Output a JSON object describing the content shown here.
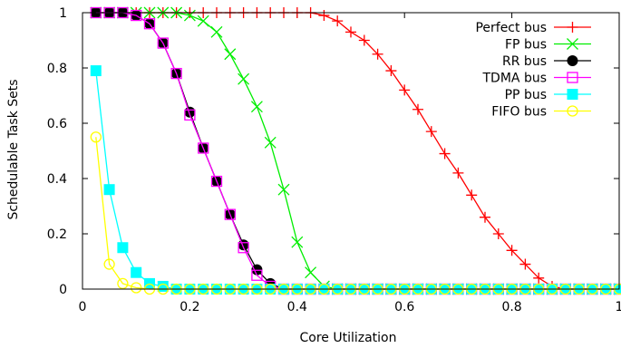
{
  "chart_data": {
    "type": "line",
    "xlabel": "Core Utilization",
    "ylabel": "Schedulable Task Sets",
    "xlim": [
      0,
      1
    ],
    "ylim": [
      0,
      1
    ],
    "xticks": [
      0,
      0.2,
      0.4,
      0.6,
      0.8,
      1
    ],
    "xtick_labels": [
      "0",
      "0.2",
      "0.4",
      "0.6",
      "0.8",
      "1"
    ],
    "yticks": [
      0,
      0.2,
      0.4,
      0.6,
      0.8,
      1
    ],
    "ytick_labels": [
      "0",
      "0.2",
      "0.4",
      "0.6",
      "0.8",
      "1"
    ],
    "grid": false,
    "legend_position": "top-right",
    "series": [
      {
        "name": "Perfect bus",
        "color": "#ff0000",
        "marker": "plus",
        "x": [
          0.025,
          0.05,
          0.075,
          0.1,
          0.125,
          0.15,
          0.175,
          0.2,
          0.225,
          0.25,
          0.275,
          0.3,
          0.325,
          0.35,
          0.375,
          0.4,
          0.425,
          0.45,
          0.475,
          0.5,
          0.525,
          0.55,
          0.575,
          0.6,
          0.625,
          0.65,
          0.675,
          0.7,
          0.725,
          0.75,
          0.775,
          0.8,
          0.825,
          0.85,
          0.875,
          0.9,
          0.925,
          0.95,
          0.975,
          1.0
        ],
        "y": [
          1,
          1,
          1,
          1,
          1,
          1,
          1,
          1,
          1,
          1,
          1,
          1,
          1,
          1,
          1,
          1,
          1,
          0.99,
          0.97,
          0.93,
          0.9,
          0.85,
          0.79,
          0.72,
          0.65,
          0.57,
          0.49,
          0.42,
          0.34,
          0.26,
          0.2,
          0.14,
          0.09,
          0.04,
          0.01,
          0,
          0,
          0,
          0,
          0
        ]
      },
      {
        "name": "FP bus",
        "color": "#00ee00",
        "marker": "x",
        "x": [
          0.025,
          0.05,
          0.075,
          0.1,
          0.125,
          0.15,
          0.175,
          0.2,
          0.225,
          0.25,
          0.275,
          0.3,
          0.325,
          0.35,
          0.375,
          0.4,
          0.425,
          0.45,
          0.475,
          0.5,
          0.525,
          0.55,
          0.575,
          0.6,
          0.625,
          0.65,
          0.675,
          0.7,
          0.725,
          0.75,
          0.775,
          0.8,
          0.825,
          0.85,
          0.875,
          0.9,
          0.925,
          0.95,
          0.975,
          1.0
        ],
        "y": [
          1,
          1,
          1,
          1,
          1,
          1,
          1,
          0.99,
          0.97,
          0.93,
          0.85,
          0.76,
          0.66,
          0.53,
          0.36,
          0.17,
          0.06,
          0.01,
          0,
          0,
          0,
          0,
          0,
          0,
          0,
          0,
          0,
          0,
          0,
          0,
          0,
          0,
          0,
          0,
          0,
          0,
          0,
          0,
          0,
          0
        ]
      },
      {
        "name": "RR bus",
        "color": "#000000",
        "marker": "circle-filled",
        "x": [
          0.025,
          0.05,
          0.075,
          0.1,
          0.125,
          0.15,
          0.175,
          0.2,
          0.225,
          0.25,
          0.275,
          0.3,
          0.325,
          0.35,
          0.375,
          0.4,
          0.425,
          0.45,
          0.475,
          0.5,
          0.525,
          0.55,
          0.575,
          0.6,
          0.625,
          0.65,
          0.675,
          0.7,
          0.725,
          0.75,
          0.775,
          0.8,
          0.825,
          0.85,
          0.875,
          0.9,
          0.925,
          0.95,
          0.975,
          1.0
        ],
        "y": [
          1,
          1,
          1,
          0.99,
          0.96,
          0.89,
          0.78,
          0.64,
          0.51,
          0.39,
          0.27,
          0.16,
          0.07,
          0.02,
          0,
          0,
          0,
          0,
          0,
          0,
          0,
          0,
          0,
          0,
          0,
          0,
          0,
          0,
          0,
          0,
          0,
          0,
          0,
          0,
          0,
          0,
          0,
          0,
          0,
          0
        ]
      },
      {
        "name": "TDMA bus",
        "color": "#ff00ff",
        "marker": "square-open",
        "x": [
          0.025,
          0.05,
          0.075,
          0.1,
          0.125,
          0.15,
          0.175,
          0.2,
          0.225,
          0.25,
          0.275,
          0.3,
          0.325,
          0.35,
          0.375,
          0.4,
          0.425,
          0.45,
          0.475,
          0.5,
          0.525,
          0.55,
          0.575,
          0.6,
          0.625,
          0.65,
          0.675,
          0.7,
          0.725,
          0.75,
          0.775,
          0.8,
          0.825,
          0.85,
          0.875,
          0.9,
          0.925,
          0.95,
          0.975,
          1.0
        ],
        "y": [
          1,
          1,
          1,
          0.99,
          0.96,
          0.89,
          0.78,
          0.63,
          0.51,
          0.39,
          0.27,
          0.15,
          0.05,
          0.01,
          0,
          0,
          0,
          0,
          0,
          0,
          0,
          0,
          0,
          0,
          0,
          0,
          0,
          0,
          0,
          0,
          0,
          0,
          0,
          0,
          0,
          0,
          0,
          0,
          0,
          0
        ]
      },
      {
        "name": "PP bus",
        "color": "#00ffff",
        "marker": "square-filled",
        "x": [
          0.025,
          0.05,
          0.075,
          0.1,
          0.125,
          0.15,
          0.175,
          0.2,
          0.225,
          0.25,
          0.275,
          0.3,
          0.325,
          0.35,
          0.375,
          0.4,
          0.425,
          0.45,
          0.475,
          0.5,
          0.525,
          0.55,
          0.575,
          0.6,
          0.625,
          0.65,
          0.675,
          0.7,
          0.725,
          0.75,
          0.775,
          0.8,
          0.825,
          0.85,
          0.875,
          0.9,
          0.925,
          0.95,
          0.975,
          1.0
        ],
        "y": [
          0.79,
          0.36,
          0.15,
          0.06,
          0.02,
          0.01,
          0,
          0,
          0,
          0,
          0,
          0,
          0,
          0,
          0,
          0,
          0,
          0,
          0,
          0,
          0,
          0,
          0,
          0,
          0,
          0,
          0,
          0,
          0,
          0,
          0,
          0,
          0,
          0,
          0,
          0,
          0,
          0,
          0,
          0
        ]
      },
      {
        "name": "FIFO bus",
        "color": "#ffff00",
        "marker": "circle-open",
        "x": [
          0.025,
          0.05,
          0.075,
          0.1,
          0.125,
          0.15,
          0.175,
          0.2,
          0.225,
          0.25,
          0.275,
          0.3,
          0.325,
          0.35,
          0.375,
          0.4,
          0.425,
          0.45,
          0.475,
          0.5,
          0.525,
          0.55,
          0.575,
          0.6,
          0.625,
          0.65,
          0.675,
          0.7,
          0.725,
          0.75,
          0.775,
          0.8,
          0.825,
          0.85,
          0.875,
          0.9,
          0.925,
          0.95,
          0.975,
          1.0
        ],
        "y": [
          0.55,
          0.09,
          0.02,
          0.005,
          0,
          0,
          0,
          0,
          0,
          0,
          0,
          0,
          0,
          0,
          0,
          0,
          0,
          0,
          0,
          0,
          0,
          0,
          0,
          0,
          0,
          0,
          0,
          0,
          0,
          0,
          0,
          0,
          0,
          0,
          0,
          0,
          0,
          0,
          0,
          0
        ]
      }
    ]
  }
}
